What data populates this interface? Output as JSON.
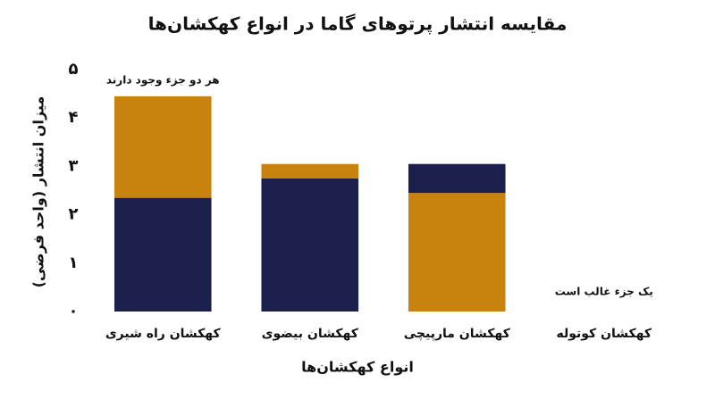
{
  "chart_data": {
    "type": "stacked_bar",
    "title": "مقایسه انتشار پرتوهای گاما در انواع کهکشان‌ها",
    "x_label": "انواع کهکشان‌ها",
    "y_label": "میزان انتشار (واحد فرضی)",
    "categories": [
      "کهکشان راه شیری",
      "کهکشان بیضوی",
      "کهکشان مارپیچی",
      "کهکشان کوتوله"
    ],
    "series": [
      {
        "color": "#1b1f4b",
        "values": [
          2.35,
          2.75,
          0.6,
          0
        ]
      },
      {
        "color": "#c8820e",
        "values": [
          2.1,
          0.3,
          2.45,
          0
        ]
      }
    ],
    "ylim": [
      0,
      5
    ],
    "yticks": [
      {
        "value": 0,
        "label": "۰"
      },
      {
        "value": 1,
        "label": "۱"
      },
      {
        "value": 2,
        "label": "۲"
      },
      {
        "value": 3,
        "label": "۳"
      },
      {
        "value": 4,
        "label": "۴"
      },
      {
        "value": 5,
        "label": "۵"
      }
    ],
    "grid": false,
    "annotations": [
      "هر دو جزء وجود دارند",
      "یک جزء غالب است"
    ]
  }
}
